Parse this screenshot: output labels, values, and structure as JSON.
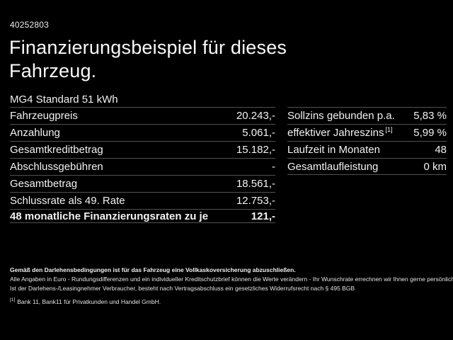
{
  "colors": {
    "background": "#000000",
    "text": "#f2f2f2",
    "divider": "#515151"
  },
  "header": {
    "vehicle_id": "40252803",
    "title_line1": "Finanzierungsbeispiel für dieses",
    "title_line2": "Fahrzeug.",
    "vehicle_model": "MG4 Standard 51 kWh"
  },
  "finance_table": {
    "rows": [
      {
        "label": "Fahrzeugpreis",
        "value": "20.243,-"
      },
      {
        "label": "Anzahlung",
        "value": "5.061,-"
      },
      {
        "label": "Gesamtkreditbetrag",
        "value": "15.182,-"
      },
      {
        "label": "Abschlussgebühren",
        "value": "-"
      },
      {
        "label": "Gesamtbetrag",
        "value": "18.561,-"
      },
      {
        "label": "Schlussrate als 49. Rate",
        "value": "12.753,-"
      },
      {
        "label": "48 monatliche Finanzierungsraten zu je",
        "value": "121,-"
      }
    ]
  },
  "conditions_table": {
    "rows": [
      {
        "label": "Sollzins gebunden p.a.",
        "value": "5,83 %"
      },
      {
        "label": "effektiver Jahreszins",
        "label_sup": "[1]",
        "value": "5,99 %"
      },
      {
        "label": "Laufzeit in Monaten",
        "value": "48"
      },
      {
        "label": "Gesamtlaufleistung",
        "value": "0 km"
      }
    ]
  },
  "footnotes": {
    "note_insurance": "Gemäß den Darlehensbedingungen ist für das Fahrzeug eine Vollkaskoversicherung abzuschließen.",
    "note_rounding": "Alle Angaben in Euro - Rundungsdifferenzen und ein individueller Kreditschutzbrief können die Werte verändern - Ihr Wunschrate errechnen wir Ihnen gerne persönlich",
    "note_withdrawal": "Ist der Darlehens-/Leasingnehmer Verbraucher, besteht nach Vertragsabschluss ein gesetzliches Widerrufsrecht nach § 495 BGB",
    "ref_marker": "[1]",
    "ref_text": "Bank 11, Bank11 für Privatkunden und Handel GmbH."
  }
}
